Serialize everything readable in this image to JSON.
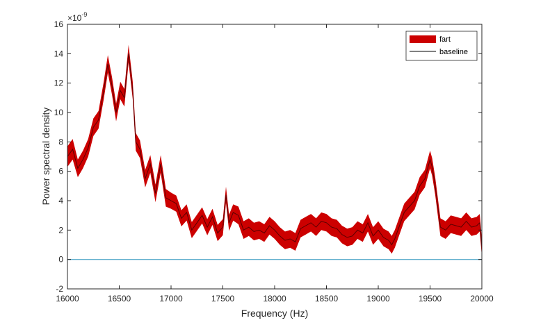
{
  "chart_data": {
    "type": "area",
    "xlabel": "Frequency (Hz)",
    "ylabel": "Power spectral density",
    "y_exponent_label": "×10",
    "y_exponent_value": "-9",
    "xlim": [
      16000,
      20000
    ],
    "ylim": [
      -2,
      16
    ],
    "x_ticks": [
      16000,
      16500,
      17000,
      17500,
      18000,
      18500,
      19000,
      19500,
      20000
    ],
    "y_ticks": [
      -2,
      0,
      2,
      4,
      6,
      8,
      10,
      12,
      14,
      16
    ],
    "grid": false,
    "legend_position": "top-right",
    "colors": {
      "band": "#cc0000",
      "mean": "#5a0000",
      "baseline": "#4da6c8",
      "axis": "#262626"
    },
    "series": [
      {
        "name": "fart",
        "style": "band",
        "x": [
          16000,
          16050,
          16100,
          16150,
          16200,
          16250,
          16300,
          16350,
          16390,
          16430,
          16470,
          16510,
          16550,
          16590,
          16630,
          16660,
          16700,
          16750,
          16800,
          16850,
          16900,
          16950,
          17000,
          17050,
          17100,
          17150,
          17200,
          17250,
          17300,
          17350,
          17400,
          17450,
          17500,
          17530,
          17560,
          17600,
          17650,
          17700,
          17750,
          17800,
          17850,
          17900,
          17950,
          18000,
          18050,
          18100,
          18150,
          18200,
          18250,
          18300,
          18350,
          18400,
          18450,
          18500,
          18550,
          18600,
          18650,
          18700,
          18750,
          18800,
          18850,
          18900,
          18950,
          19000,
          19050,
          19100,
          19130,
          19160,
          19200,
          19250,
          19300,
          19350,
          19400,
          19450,
          19500,
          19520,
          19550,
          19600,
          19650,
          19700,
          19750,
          19800,
          19850,
          19900,
          19950,
          19980,
          20000
        ],
        "mean": [
          7.0,
          7.5,
          6.2,
          6.8,
          7.6,
          9.0,
          9.5,
          11.5,
          13.3,
          11.8,
          10.0,
          11.5,
          11.0,
          14.0,
          11.5,
          8.0,
          7.5,
          5.5,
          6.5,
          4.5,
          6.5,
          4.2,
          4.0,
          3.8,
          2.8,
          3.2,
          2.0,
          2.5,
          3.0,
          2.2,
          2.9,
          1.8,
          2.2,
          4.4,
          2.5,
          3.2,
          3.0,
          2.0,
          2.2,
          1.9,
          2.0,
          1.8,
          2.3,
          2.0,
          1.6,
          1.3,
          1.4,
          1.2,
          2.1,
          2.3,
          2.5,
          2.2,
          2.6,
          2.5,
          2.2,
          2.1,
          1.7,
          1.5,
          1.6,
          2.0,
          1.8,
          2.5,
          1.6,
          2.0,
          1.5,
          1.3,
          1.0,
          1.4,
          2.2,
          3.2,
          3.6,
          4.0,
          5.0,
          5.5,
          6.8,
          6.3,
          5.0,
          2.2,
          2.0,
          2.4,
          2.3,
          2.2,
          2.6,
          2.2,
          2.3,
          2.5,
          0.8
        ],
        "half_width": [
          0.7,
          0.7,
          0.6,
          0.6,
          0.6,
          0.6,
          0.6,
          0.6,
          0.6,
          0.6,
          0.6,
          0.6,
          0.6,
          0.6,
          0.6,
          0.6,
          0.6,
          0.6,
          0.6,
          0.6,
          0.6,
          0.6,
          0.55,
          0.55,
          0.55,
          0.55,
          0.55,
          0.55,
          0.55,
          0.55,
          0.55,
          0.55,
          0.55,
          0.55,
          0.55,
          0.55,
          0.6,
          0.6,
          0.6,
          0.6,
          0.6,
          0.6,
          0.6,
          0.6,
          0.6,
          0.6,
          0.6,
          0.6,
          0.6,
          0.6,
          0.6,
          0.6,
          0.6,
          0.6,
          0.6,
          0.6,
          0.6,
          0.6,
          0.6,
          0.6,
          0.6,
          0.6,
          0.6,
          0.6,
          0.6,
          0.6,
          0.6,
          0.6,
          0.6,
          0.6,
          0.6,
          0.6,
          0.6,
          0.6,
          0.6,
          0.6,
          0.6,
          0.6,
          0.6,
          0.6,
          0.6,
          0.6,
          0.6,
          0.6,
          0.6,
          0.6,
          0.6
        ]
      },
      {
        "name": "baseline",
        "style": "line",
        "x": [
          16000,
          20000
        ],
        "y": [
          0,
          0
        ]
      }
    ]
  }
}
